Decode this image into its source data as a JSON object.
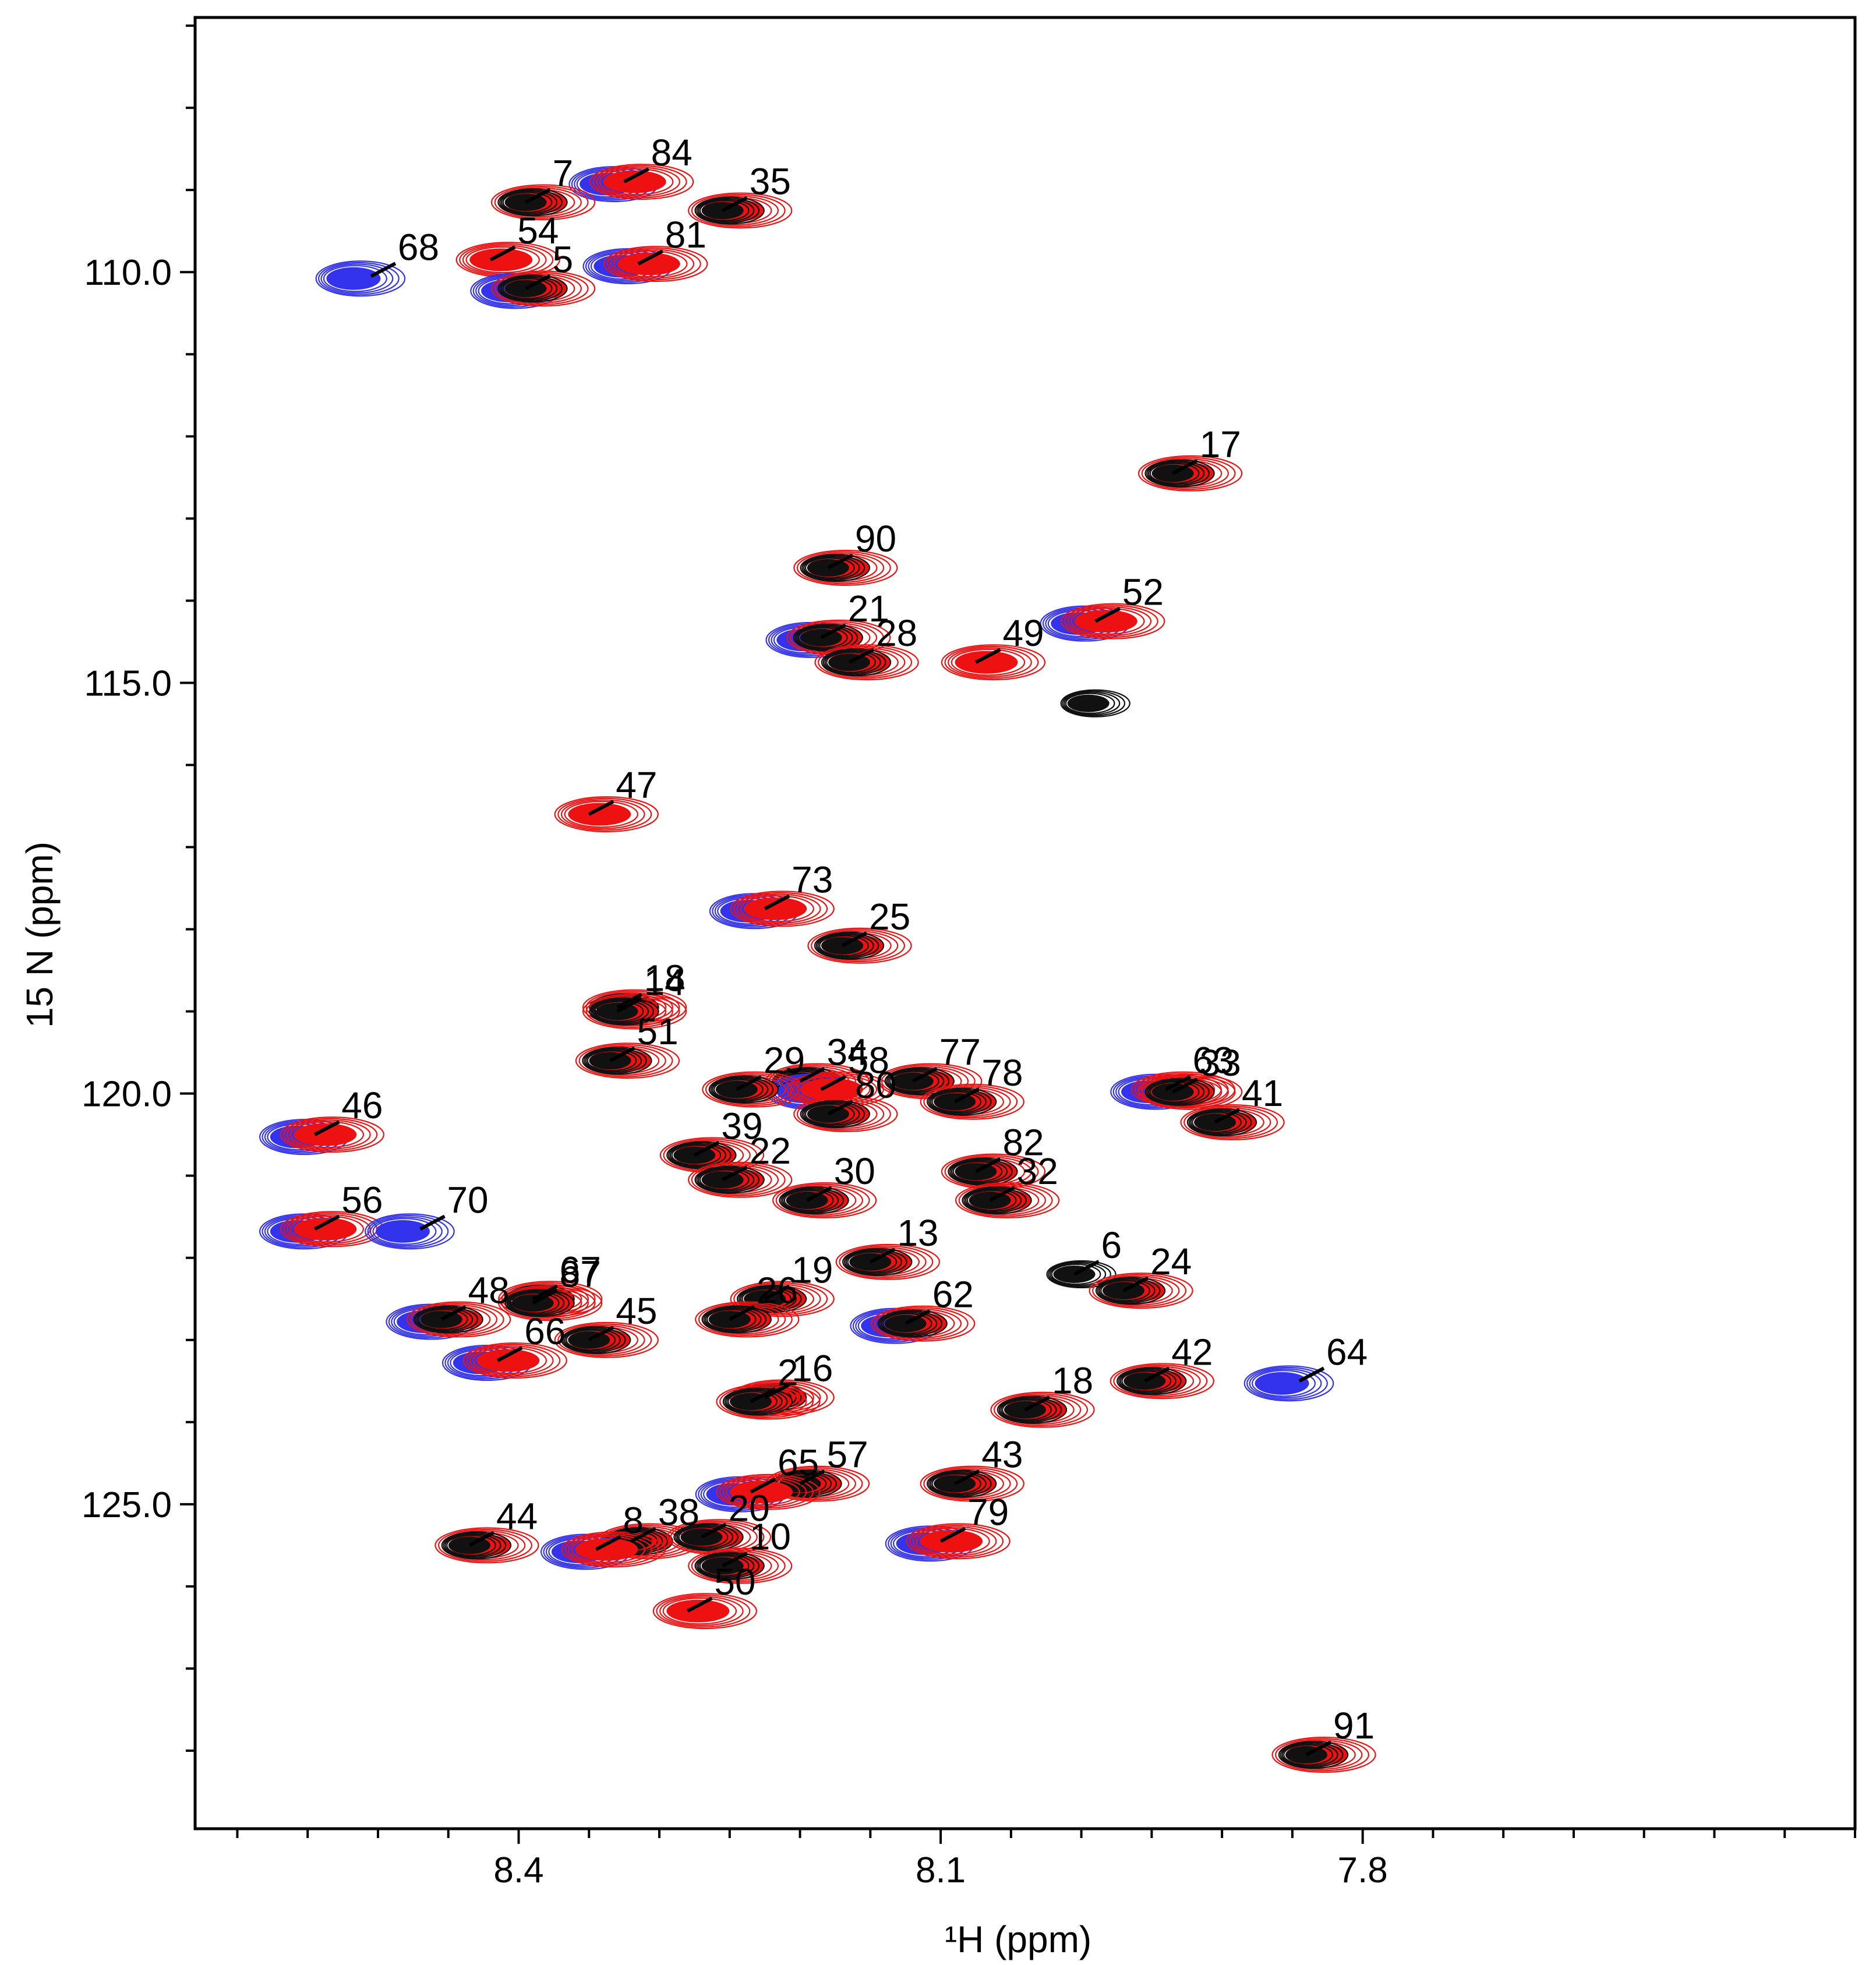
{
  "chart_data": {
    "type": "scatter",
    "subtype": "2D 1H-15N HSQC NMR spectrum overlay",
    "title": "",
    "xlabel": "¹H (ppm)",
    "ylabel": "15 N (ppm)",
    "xlim": [
      8.63,
      7.45
    ],
    "ylim": [
      106.9,
      128.95
    ],
    "x_ticks": [
      {
        "value": 8.4,
        "label": "8.4"
      },
      {
        "value": 8.1,
        "label": "8.1"
      },
      {
        "value": 7.8,
        "label": "7.8"
      }
    ],
    "y_ticks": [
      {
        "value": 110.0,
        "label": "110.0"
      },
      {
        "value": 115.0,
        "label": "115.0"
      },
      {
        "value": 120.0,
        "label": "120.0"
      },
      {
        "value": 125.0,
        "label": "125.0"
      }
    ],
    "series": [
      {
        "name": "blue spectrum",
        "color": "#3333ee"
      },
      {
        "name": "red spectrum",
        "color": "#ee1111"
      },
      {
        "name": "black spectrum",
        "color": "#111111"
      }
    ],
    "peaks": [
      {
        "label": "84",
        "h": 8.325,
        "n": 108.9,
        "series": [
          "red",
          "blue"
        ]
      },
      {
        "label": "7",
        "h": 8.395,
        "n": 109.15,
        "series": [
          "black",
          "red"
        ]
      },
      {
        "label": "35",
        "h": 8.255,
        "n": 109.25,
        "series": [
          "black",
          "red"
        ]
      },
      {
        "label": "68",
        "h": 8.505,
        "n": 110.05,
        "series": [
          "blue"
        ]
      },
      {
        "label": "54",
        "h": 8.42,
        "n": 109.85,
        "series": [
          "red"
        ]
      },
      {
        "label": "81",
        "h": 8.315,
        "n": 109.9,
        "series": [
          "red",
          "blue"
        ]
      },
      {
        "label": "5",
        "h": 8.395,
        "n": 110.2,
        "series": [
          "black",
          "red",
          "blue"
        ]
      },
      {
        "label": "17",
        "h": 7.935,
        "n": 112.45,
        "series": [
          "black",
          "red"
        ]
      },
      {
        "label": "90",
        "h": 8.18,
        "n": 113.6,
        "series": [
          "black",
          "red"
        ]
      },
      {
        "label": "21",
        "h": 8.185,
        "n": 114.45,
        "series": [
          "black",
          "red",
          "blue"
        ]
      },
      {
        "label": "28",
        "h": 8.165,
        "n": 114.75,
        "series": [
          "black",
          "red"
        ]
      },
      {
        "label": "49",
        "h": 8.075,
        "n": 114.75,
        "series": [
          "red"
        ]
      },
      {
        "label": "52",
        "h": 7.99,
        "n": 114.25,
        "series": [
          "red",
          "blue"
        ]
      },
      {
        "label": "",
        "h": 7.995,
        "n": 115.25,
        "series": [
          "black"
        ]
      },
      {
        "label": "47",
        "h": 8.35,
        "n": 116.6,
        "series": [
          "red"
        ]
      },
      {
        "label": "73",
        "h": 8.225,
        "n": 117.75,
        "series": [
          "blue",
          "red"
        ]
      },
      {
        "label": "25",
        "h": 8.17,
        "n": 118.2,
        "series": [
          "black",
          "red"
        ]
      },
      {
        "label": "18",
        "h": 8.33,
        "n": 118.95,
        "series": [
          "black",
          "red"
        ]
      },
      {
        "label": "14",
        "h": 8.33,
        "n": 119.0,
        "series": [
          "black",
          "red"
        ]
      },
      {
        "label": "51",
        "h": 8.335,
        "n": 119.6,
        "series": [
          "black",
          "red"
        ]
      },
      {
        "label": "34",
        "h": 8.2,
        "n": 119.85,
        "series": [
          "black",
          "red"
        ]
      },
      {
        "label": "58",
        "h": 8.185,
        "n": 119.95,
        "series": [
          "blue",
          "red"
        ]
      },
      {
        "label": "29",
        "h": 8.245,
        "n": 119.95,
        "series": [
          "black",
          "red"
        ]
      },
      {
        "label": "77",
        "h": 8.12,
        "n": 119.85,
        "series": [
          "black",
          "red"
        ]
      },
      {
        "label": "78",
        "h": 8.09,
        "n": 120.1,
        "series": [
          "black",
          "red"
        ]
      },
      {
        "label": "80",
        "h": 8.18,
        "n": 120.25,
        "series": [
          "black",
          "red"
        ]
      },
      {
        "label": "63",
        "h": 7.94,
        "n": 119.95,
        "series": [
          "blue",
          "red"
        ]
      },
      {
        "label": "33",
        "h": 7.935,
        "n": 119.98,
        "series": [
          "black",
          "red"
        ]
      },
      {
        "label": "41",
        "h": 7.905,
        "n": 120.35,
        "series": [
          "black",
          "red"
        ]
      },
      {
        "label": "46",
        "h": 8.545,
        "n": 120.5,
        "series": [
          "red",
          "blue"
        ]
      },
      {
        "label": "39",
        "h": 8.275,
        "n": 120.75,
        "series": [
          "black",
          "red"
        ]
      },
      {
        "label": "22",
        "h": 8.255,
        "n": 121.05,
        "series": [
          "black",
          "red"
        ]
      },
      {
        "label": "82",
        "h": 8.075,
        "n": 120.95,
        "series": [
          "black",
          "red"
        ]
      },
      {
        "label": "32",
        "h": 8.065,
        "n": 121.3,
        "series": [
          "black",
          "red"
        ]
      },
      {
        "label": "30",
        "h": 8.195,
        "n": 121.3,
        "series": [
          "black",
          "red"
        ]
      },
      {
        "label": "56",
        "h": 8.545,
        "n": 121.65,
        "series": [
          "red",
          "blue"
        ]
      },
      {
        "label": "70",
        "h": 8.47,
        "n": 121.65,
        "series": [
          "blue"
        ]
      },
      {
        "label": "13",
        "h": 8.15,
        "n": 122.05,
        "series": [
          "black",
          "red"
        ]
      },
      {
        "label": "19",
        "h": 8.225,
        "n": 122.5,
        "series": [
          "black",
          "red"
        ]
      },
      {
        "label": "6",
        "h": 8.005,
        "n": 122.2,
        "series": [
          "black"
        ]
      },
      {
        "label": "24",
        "h": 7.97,
        "n": 122.4,
        "series": [
          "black",
          "red"
        ]
      },
      {
        "label": "48",
        "h": 8.455,
        "n": 122.75,
        "series": [
          "black",
          "red",
          "blue"
        ]
      },
      {
        "label": "67",
        "h": 8.39,
        "n": 122.5,
        "series": [
          "black",
          "red"
        ]
      },
      {
        "label": "87",
        "h": 8.39,
        "n": 122.55,
        "series": [
          "black",
          "red"
        ]
      },
      {
        "label": "62",
        "h": 8.125,
        "n": 122.8,
        "series": [
          "black",
          "red",
          "blue"
        ]
      },
      {
        "label": "26",
        "h": 8.25,
        "n": 122.75,
        "series": [
          "black",
          "red"
        ]
      },
      {
        "label": "45",
        "h": 8.35,
        "n": 123.0,
        "series": [
          "black",
          "red"
        ]
      },
      {
        "label": "66",
        "h": 8.415,
        "n": 123.25,
        "series": [
          "blue",
          "red"
        ]
      },
      {
        "label": "16",
        "h": 8.225,
        "n": 123.7,
        "series": [
          "black",
          "red"
        ]
      },
      {
        "label": "2",
        "h": 8.235,
        "n": 123.75,
        "series": [
          "black",
          "red"
        ]
      },
      {
        "label": "42",
        "h": 7.955,
        "n": 123.5,
        "series": [
          "black",
          "red"
        ]
      },
      {
        "label": "64",
        "h": 7.845,
        "n": 123.5,
        "series": [
          "blue"
        ]
      },
      {
        "label": "18",
        "h": 8.04,
        "n": 123.85,
        "series": [
          "black",
          "red"
        ]
      },
      {
        "label": "43",
        "h": 8.09,
        "n": 124.75,
        "series": [
          "black",
          "red"
        ]
      },
      {
        "label": "57",
        "h": 8.2,
        "n": 124.75,
        "series": [
          "black",
          "red"
        ]
      },
      {
        "label": "65",
        "h": 8.235,
        "n": 124.85,
        "series": [
          "blue",
          "red"
        ]
      },
      {
        "label": "79",
        "h": 8.1,
        "n": 125.45,
        "series": [
          "blue",
          "red"
        ]
      },
      {
        "label": "44",
        "h": 8.435,
        "n": 125.5,
        "series": [
          "black",
          "red"
        ]
      },
      {
        "label": "38",
        "h": 8.32,
        "n": 125.45,
        "series": [
          "black",
          "red"
        ]
      },
      {
        "label": "20",
        "h": 8.27,
        "n": 125.4,
        "series": [
          "black",
          "red"
        ]
      },
      {
        "label": "8",
        "h": 8.345,
        "n": 125.55,
        "series": [
          "red",
          "blue"
        ]
      },
      {
        "label": "10",
        "h": 8.255,
        "n": 125.75,
        "series": [
          "black",
          "red"
        ]
      },
      {
        "label": "50",
        "h": 8.28,
        "n": 126.3,
        "series": [
          "red"
        ]
      },
      {
        "label": "91",
        "h": 7.84,
        "n": 128.05,
        "series": [
          "black",
          "red"
        ]
      }
    ]
  }
}
